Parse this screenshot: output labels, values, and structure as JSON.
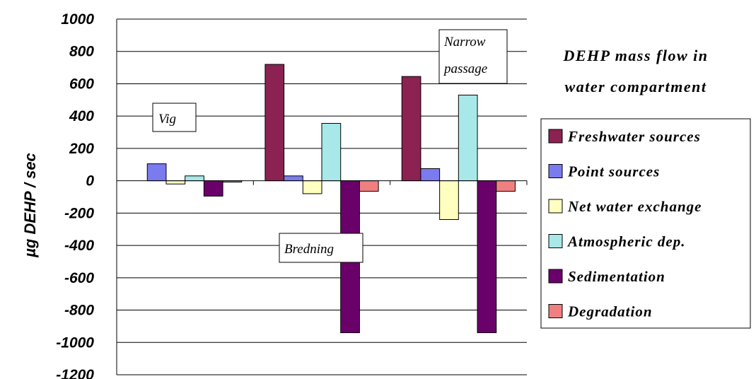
{
  "chart_data": {
    "type": "bar",
    "title": [
      "DEHP mass flow in",
      "water compartment"
    ],
    "ylabel": "µg DEHP / sec",
    "ylim": [
      -1200,
      1000
    ],
    "yticks": [
      1000,
      800,
      600,
      400,
      200,
      0,
      -200,
      -400,
      -600,
      -800,
      -1000,
      -1200
    ],
    "grid": true,
    "legend_position": "right",
    "categories": [
      "Vig",
      "Bredning",
      "Narrow passage"
    ],
    "series": [
      {
        "name": "Freshwater sources",
        "color": "#8B2252",
        "values": [
          0,
          720,
          645
        ]
      },
      {
        "name": "Point sources",
        "color": "#7B7BF0",
        "values": [
          105,
          30,
          75
        ]
      },
      {
        "name": "Net water exchange",
        "color": "#FFFFC0",
        "values": [
          -20,
          -80,
          -240
        ]
      },
      {
        "name": "Atmospheric dep.",
        "color": "#A8E8E8",
        "values": [
          30,
          355,
          530
        ]
      },
      {
        "name": "Sedimentation",
        "color": "#6A006A",
        "values": [
          -95,
          -940,
          -940
        ]
      },
      {
        "name": "Degradation",
        "color": "#F08080",
        "values": [
          -8,
          -65,
          -65
        ]
      }
    ],
    "annotations": [
      "Vig",
      "Bredning",
      "Narrow",
      "passage"
    ]
  }
}
